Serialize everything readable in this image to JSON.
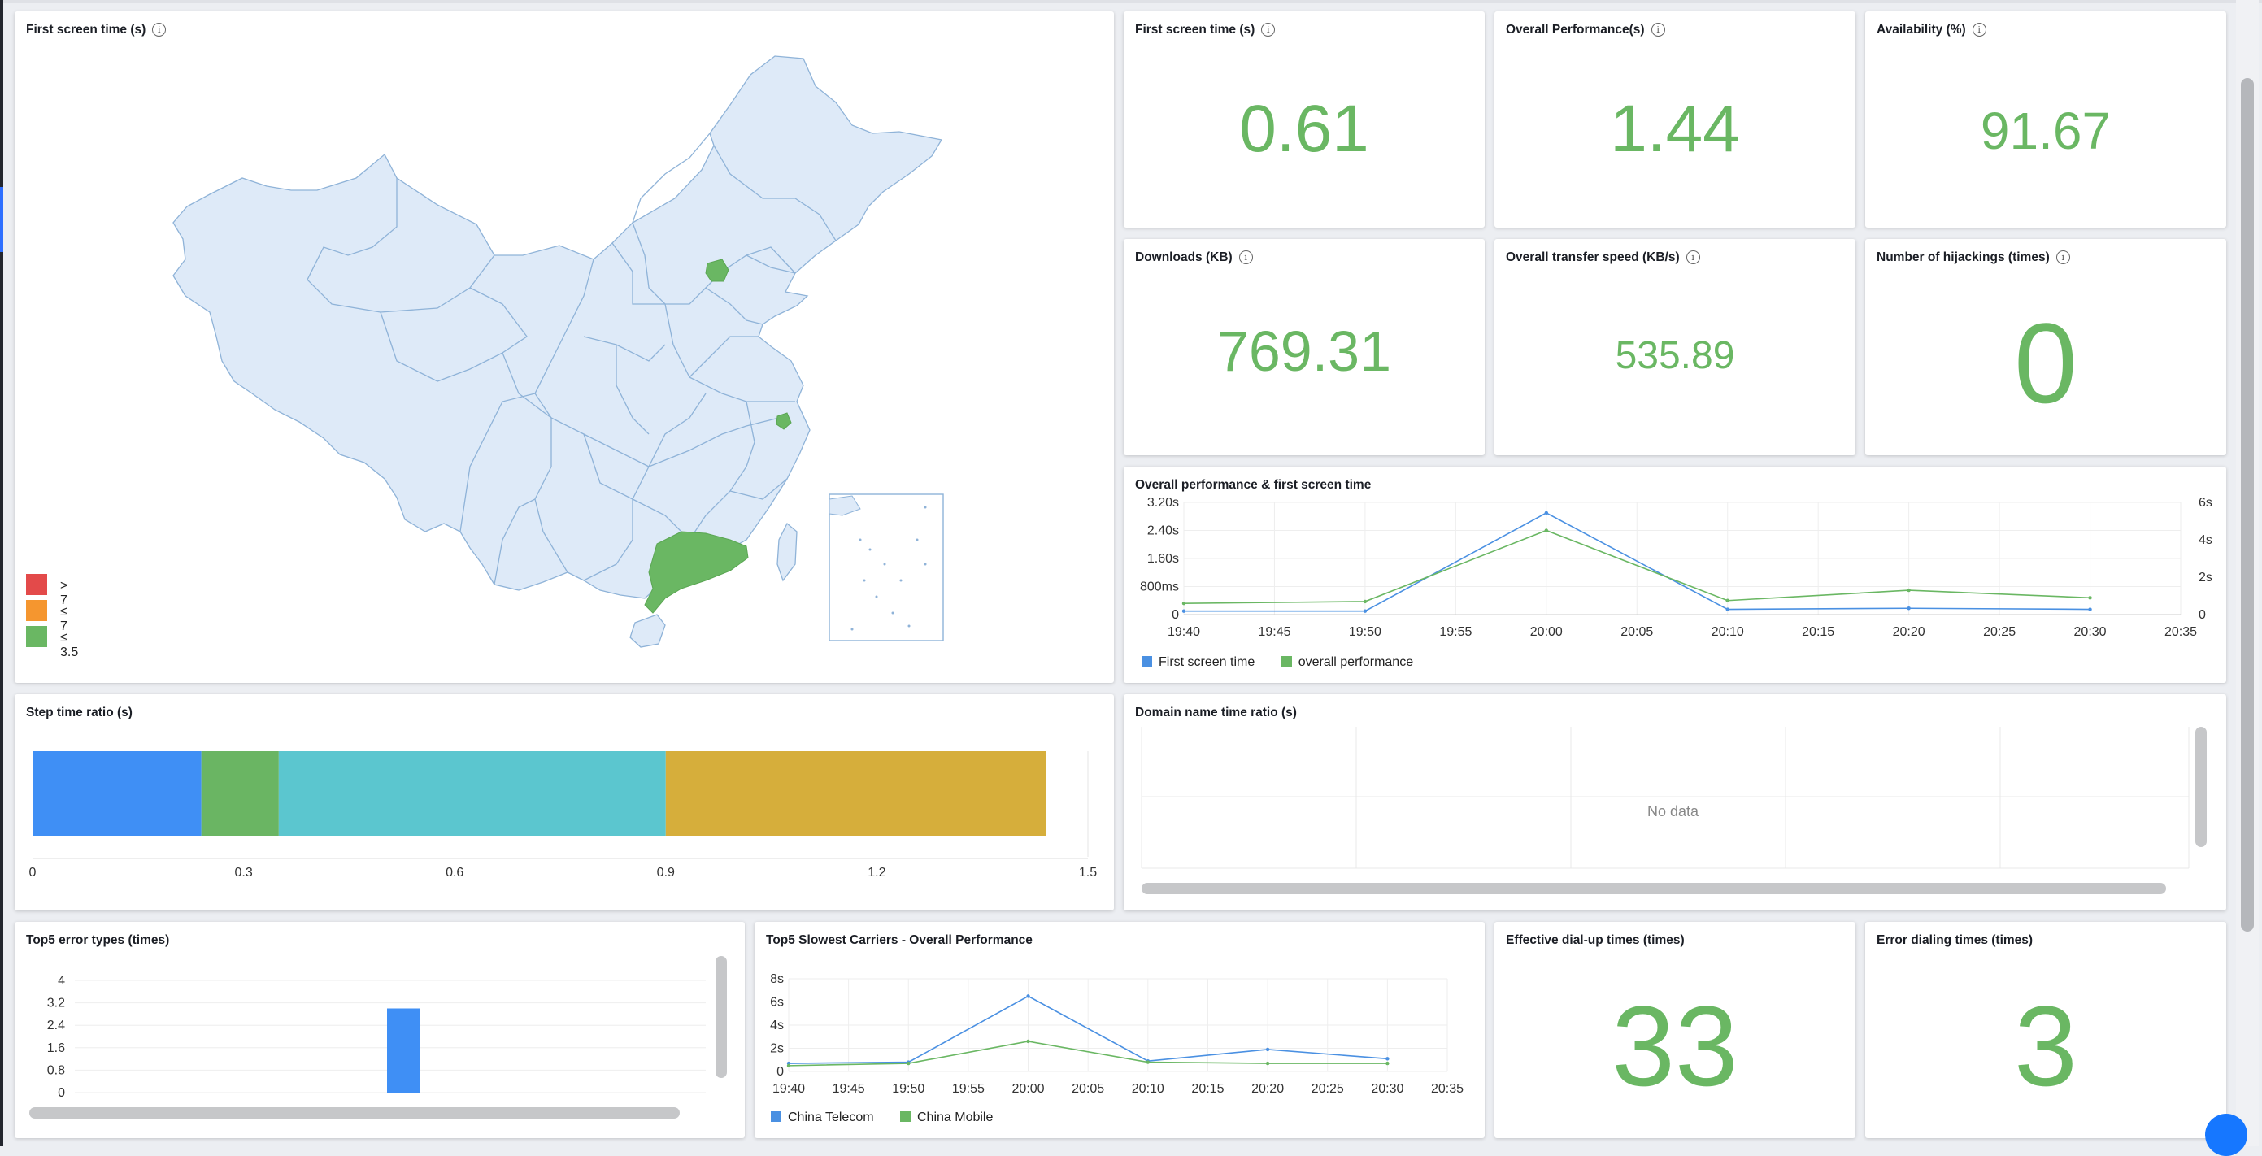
{
  "map_panel": {
    "title": "First screen time (s)",
    "legend": [
      {
        "label": "> 7",
        "color": "#e34a4a"
      },
      {
        "label": "≤ 7",
        "color": "#f5962f"
      },
      {
        "label": "≤ 3.5",
        "color": "#6ab763"
      }
    ],
    "fill_color": "#deeaf8",
    "highlight_color": "#6ab763"
  },
  "kpis": [
    {
      "title": "First screen time (s)",
      "value": "0.61"
    },
    {
      "title": "Overall Performance(s)",
      "value": "1.44"
    },
    {
      "title": "Availability (%)",
      "value": "91.67"
    },
    {
      "title": "Downloads (KB)",
      "value": "769.31"
    },
    {
      "title": "Overall transfer speed (KB/s)",
      "value": "535.89"
    },
    {
      "title": "Number of hijackings (times)",
      "value": "0"
    },
    {
      "title": "Effective dial-up times (times)",
      "value": "33"
    },
    {
      "title": "Error dialing times (times)",
      "value": "3"
    }
  ],
  "perf_chart": {
    "title": "Overall performance & first screen time",
    "no_data": "",
    "chart_data": {
      "type": "line",
      "x": [
        "19:40",
        "19:45",
        "19:50",
        "19:55",
        "20:00",
        "20:05",
        "20:10",
        "20:15",
        "20:20",
        "20:25",
        "20:30",
        "20:35"
      ],
      "series": [
        {
          "name": "First screen time",
          "axis": "left",
          "color": "#4a90e2",
          "points": [
            [
              "19:40",
              0.1
            ],
            [
              "19:50",
              0.1
            ],
            [
              "20:00",
              2.9
            ],
            [
              "20:10",
              0.15
            ],
            [
              "20:20",
              0.18
            ],
            [
              "20:30",
              0.15
            ]
          ]
        },
        {
          "name": "overall performance",
          "axis": "right",
          "color": "#6ab763",
          "points": [
            [
              "19:40",
              0.6
            ],
            [
              "19:50",
              0.7
            ],
            [
              "20:00",
              4.5
            ],
            [
              "20:10",
              0.75
            ],
            [
              "20:20",
              1.3
            ],
            [
              "20:30",
              0.9
            ]
          ]
        }
      ],
      "y_left_ticks": [
        "0",
        "800ms",
        "1.60s",
        "2.40s",
        "3.20s"
      ],
      "y_left_range": [
        0,
        3.2
      ],
      "y_right_ticks": [
        "0",
        "2s",
        "4s",
        "6s"
      ],
      "y_right_range": [
        0,
        6
      ],
      "grid": true,
      "legend_position": "bottom-left"
    }
  },
  "step_chart": {
    "title": "Step time ratio (s)",
    "chart_data": {
      "type": "bar",
      "orientation": "horizontal-stacked",
      "segments": [
        {
          "value": 0.24,
          "color": "#3f8ff5"
        },
        {
          "value": 0.11,
          "color": "#6ab563"
        },
        {
          "value": 0.55,
          "color": "#5bc6cf"
        },
        {
          "value": 0.54,
          "color": "#d6ae3b"
        }
      ],
      "x_ticks": [
        "0",
        "0.3",
        "0.6",
        "0.9",
        "1.2",
        "1.5"
      ],
      "xlim": [
        0,
        1.5
      ]
    }
  },
  "domain_chart": {
    "title": "Domain name time ratio (s)",
    "no_data": "No data"
  },
  "error_chart": {
    "title": "Top5 error types (times)",
    "chart_data": {
      "type": "bar",
      "values": [
        3
      ],
      "y_ticks": [
        "0",
        "0.8",
        "1.6",
        "2.4",
        "3.2",
        "4"
      ],
      "ylim": [
        0,
        4
      ],
      "color": "#3f8ff5"
    }
  },
  "carrier_chart": {
    "title": "Top5 Slowest Carriers - Overall Performance",
    "chart_data": {
      "type": "line",
      "x": [
        "19:40",
        "19:45",
        "19:50",
        "19:55",
        "20:00",
        "20:05",
        "20:10",
        "20:15",
        "20:20",
        "20:25",
        "20:30",
        "20:35"
      ],
      "series": [
        {
          "name": "China Telecom",
          "color": "#4a90e2",
          "points": [
            [
              "19:40",
              0.7
            ],
            [
              "19:50",
              0.8
            ],
            [
              "20:00",
              6.5
            ],
            [
              "20:10",
              0.9
            ],
            [
              "20:20",
              1.9
            ],
            [
              "20:30",
              1.1
            ]
          ]
        },
        {
          "name": "China Mobile",
          "color": "#6ab763",
          "points": [
            [
              "19:40",
              0.5
            ],
            [
              "19:50",
              0.7
            ],
            [
              "20:00",
              2.6
            ],
            [
              "20:10",
              0.8
            ],
            [
              "20:20",
              0.7
            ],
            [
              "20:30",
              0.7
            ]
          ]
        }
      ],
      "y_ticks": [
        "0",
        "2s",
        "4s",
        "6s",
        "8s"
      ],
      "ylim": [
        0,
        8
      ],
      "grid": true,
      "legend_position": "bottom-left"
    }
  }
}
